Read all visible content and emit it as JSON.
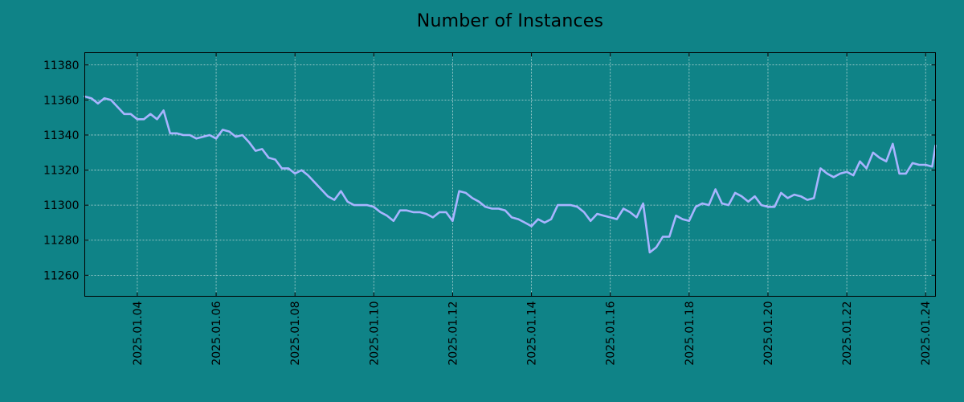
{
  "chart_data": {
    "type": "line",
    "title": "Number of Instances",
    "xlabel": "",
    "ylabel": "",
    "ylim": [
      11248,
      11387
    ],
    "yticks": [
      11260,
      11280,
      11300,
      11320,
      11340,
      11360,
      11380
    ],
    "xlim": [
      "2025-01-02 16:00",
      "2025-01-24 06:00"
    ],
    "xticks": [
      "2025.01.04",
      "2025.01.06",
      "2025.01.08",
      "2025.01.10",
      "2025.01.12",
      "2025.01.14",
      "2025.01.16",
      "2025.01.18",
      "2025.01.20",
      "2025.01.22",
      "2025.01.24"
    ],
    "grid": true,
    "colors": {
      "background": "#0f8387",
      "line": "#a8b4ff",
      "grid": "#b9d8d8",
      "axes": "#000000"
    },
    "series": [
      {
        "x": [
          "2025-01-02 16:00",
          "2025-01-02 20:00",
          "2025-01-03 00:00",
          "2025-01-03 04:00",
          "2025-01-03 08:00",
          "2025-01-03 12:00",
          "2025-01-03 16:00",
          "2025-01-03 20:00",
          "2025-01-04 00:00",
          "2025-01-04 04:00",
          "2025-01-04 08:00",
          "2025-01-04 12:00",
          "2025-01-04 16:00",
          "2025-01-04 20:00",
          "2025-01-05 00:00",
          "2025-01-05 04:00",
          "2025-01-05 08:00",
          "2025-01-05 12:00",
          "2025-01-05 16:00",
          "2025-01-05 20:00",
          "2025-01-06 00:00",
          "2025-01-06 04:00",
          "2025-01-06 08:00",
          "2025-01-06 12:00",
          "2025-01-06 16:00",
          "2025-01-06 20:00",
          "2025-01-07 00:00",
          "2025-01-07 04:00",
          "2025-01-07 08:00",
          "2025-01-07 12:00",
          "2025-01-07 16:00",
          "2025-01-07 20:00",
          "2025-01-08 00:00",
          "2025-01-08 04:00",
          "2025-01-08 08:00",
          "2025-01-08 12:00",
          "2025-01-08 16:00",
          "2025-01-08 20:00",
          "2025-01-09 00:00",
          "2025-01-09 04:00",
          "2025-01-09 08:00",
          "2025-01-09 12:00",
          "2025-01-09 16:00",
          "2025-01-09 20:00",
          "2025-01-10 00:00",
          "2025-01-10 04:00",
          "2025-01-10 08:00",
          "2025-01-10 12:00",
          "2025-01-10 16:00",
          "2025-01-10 20:00",
          "2025-01-11 00:00",
          "2025-01-11 04:00",
          "2025-01-11 08:00",
          "2025-01-11 12:00",
          "2025-01-11 16:00",
          "2025-01-11 20:00",
          "2025-01-12 00:00",
          "2025-01-12 04:00",
          "2025-01-12 08:00",
          "2025-01-12 12:00",
          "2025-01-12 16:00",
          "2025-01-12 20:00",
          "2025-01-13 00:00",
          "2025-01-13 04:00",
          "2025-01-13 08:00",
          "2025-01-13 12:00",
          "2025-01-13 16:00",
          "2025-01-13 20:00",
          "2025-01-14 00:00",
          "2025-01-14 04:00",
          "2025-01-14 08:00",
          "2025-01-14 12:00",
          "2025-01-14 16:00",
          "2025-01-14 20:00",
          "2025-01-15 00:00",
          "2025-01-15 04:00",
          "2025-01-15 08:00",
          "2025-01-15 12:00",
          "2025-01-15 16:00",
          "2025-01-15 20:00",
          "2025-01-16 00:00",
          "2025-01-16 04:00",
          "2025-01-16 08:00",
          "2025-01-16 12:00",
          "2025-01-16 16:00",
          "2025-01-16 20:00",
          "2025-01-17 00:00",
          "2025-01-17 04:00",
          "2025-01-17 08:00",
          "2025-01-17 12:00",
          "2025-01-17 16:00",
          "2025-01-17 20:00",
          "2025-01-18 00:00",
          "2025-01-18 04:00",
          "2025-01-18 08:00",
          "2025-01-18 12:00",
          "2025-01-18 16:00",
          "2025-01-18 20:00",
          "2025-01-19 00:00",
          "2025-01-19 04:00",
          "2025-01-19 08:00",
          "2025-01-19 12:00",
          "2025-01-19 16:00",
          "2025-01-19 20:00",
          "2025-01-20 00:00",
          "2025-01-20 04:00",
          "2025-01-20 08:00",
          "2025-01-20 12:00",
          "2025-01-20 16:00",
          "2025-01-20 20:00",
          "2025-01-21 00:00",
          "2025-01-21 04:00",
          "2025-01-21 08:00",
          "2025-01-21 12:00",
          "2025-01-21 16:00",
          "2025-01-21 20:00",
          "2025-01-22 00:00",
          "2025-01-22 04:00",
          "2025-01-22 08:00",
          "2025-01-22 12:00",
          "2025-01-22 16:00",
          "2025-01-22 20:00",
          "2025-01-23 00:00",
          "2025-01-23 04:00",
          "2025-01-23 08:00",
          "2025-01-23 12:00",
          "2025-01-23 16:00",
          "2025-01-23 20:00",
          "2025-01-24 00:00",
          "2025-01-24 04:00",
          "2025-01-24 06:00"
        ],
        "y": [
          11362,
          11361,
          11358,
          11361,
          11360,
          11356,
          11352,
          11352,
          11349,
          11349,
          11352,
          11349,
          11354,
          11341,
          11341,
          11340,
          11340,
          11338,
          11339,
          11340,
          11338,
          11343,
          11342,
          11339,
          11340,
          11336,
          11331,
          11332,
          11327,
          11326,
          11321,
          11321,
          11318,
          11320,
          11317,
          11313,
          11309,
          11305,
          11303,
          11308,
          11302,
          11300,
          11300,
          11300,
          11299,
          11296,
          11294,
          11291,
          11297,
          11297,
          11296,
          11296,
          11295,
          11293,
          11296,
          11296,
          11291,
          11308,
          11307,
          11304,
          11302,
          11299,
          11298,
          11298,
          11297,
          11293,
          11292,
          11290,
          11288,
          11292,
          11290,
          11292,
          11300,
          11300,
          11300,
          11299,
          11296,
          11291,
          11295,
          11294,
          11293,
          11292,
          11298,
          11296,
          11293,
          11301,
          11273,
          11276,
          11282,
          11282,
          11294,
          11292,
          11291,
          11299,
          11301,
          11300,
          11309,
          11301,
          11300,
          11307,
          11305,
          11302,
          11305,
          11300,
          11299,
          11299,
          11307,
          11304,
          11306,
          11305,
          11303,
          11304,
          11321,
          11318,
          11316,
          11318,
          11319,
          11317,
          11325,
          11321,
          11330,
          11327,
          11325,
          11335,
          11318,
          11318,
          11324,
          11323,
          11323,
          11322,
          11334
        ]
      }
    ]
  }
}
